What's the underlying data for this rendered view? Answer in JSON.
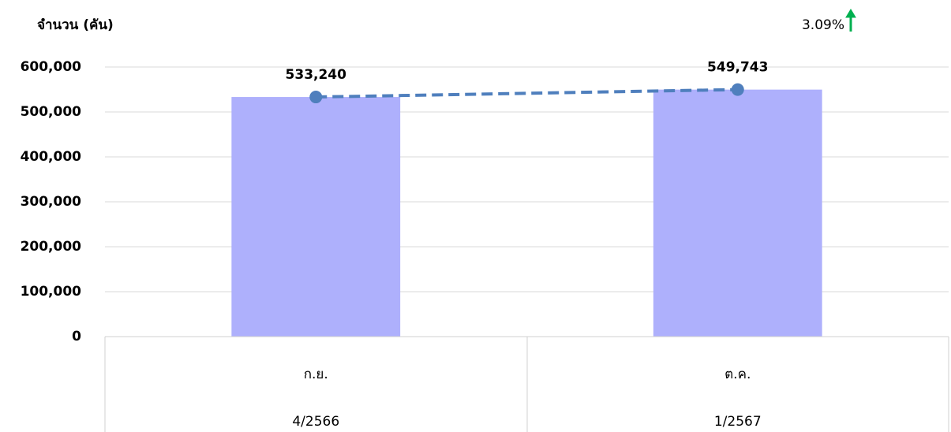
{
  "chart_data": {
    "type": "bar",
    "y_axis_label": "จำนวน (คัน)",
    "annotation": "3.09%",
    "annotation_color": "#00b050",
    "categories": [
      "ก.ย.",
      "ต.ค."
    ],
    "category_groups": [
      "4/2566",
      "1/2567"
    ],
    "values": [
      533240,
      549743
    ],
    "value_labels": [
      "533,240",
      "549,743"
    ],
    "color": "#aeb0fc",
    "line_color": "#4f7fbd",
    "line_dashed": true,
    "ylim": [
      0,
      600000
    ],
    "yticks": [
      0,
      {
        "value": 100000,
        "label": "100,000"
      },
      {
        "value": 200000,
        "label": "200,000"
      },
      {
        "value": 300000,
        "label": "300,000"
      },
      {
        "value": 400000,
        "label": "400,000"
      },
      {
        "value": 500000,
        "label": "500,000"
      },
      {
        "value": 600000,
        "label": "600,000"
      }
    ],
    "grid": true
  }
}
